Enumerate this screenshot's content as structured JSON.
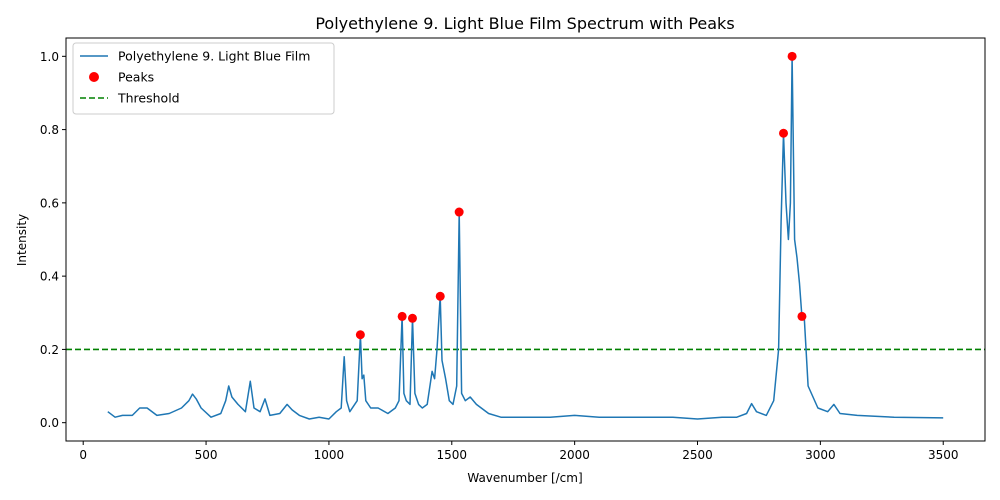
{
  "chart_data": {
    "type": "line",
    "title": "Polyethylene 9. Light Blue Film Spectrum with Peaks",
    "xlabel": "Wavenumber [/cm]",
    "ylabel": "Intensity",
    "xlim": [
      -70,
      3670
    ],
    "ylim": [
      -0.05,
      1.05
    ],
    "xticks": [
      0,
      500,
      1000,
      1500,
      2000,
      2500,
      3000,
      3500
    ],
    "yticks": [
      0.0,
      0.2,
      0.4,
      0.6,
      0.8,
      1.0
    ],
    "xtick_labels": [
      "0",
      "500",
      "1000",
      "1500",
      "2000",
      "2500",
      "3000",
      "3500"
    ],
    "ytick_labels": [
      "0.0",
      "0.2",
      "0.4",
      "0.6",
      "0.8",
      "1.0"
    ],
    "grid": false,
    "legend_position": "top-left",
    "legend": [
      "Polyethylene 9. Light Blue Film",
      "Peaks",
      "Threshold"
    ],
    "series": [
      {
        "name": "Polyethylene 9. Light Blue Film",
        "color": "#1f77b4",
        "style": "solid-line",
        "x": [
          100,
          130,
          160,
          200,
          230,
          260,
          300,
          350,
          400,
          430,
          445,
          460,
          480,
          520,
          560,
          580,
          592,
          605,
          630,
          660,
          680,
          695,
          720,
          740,
          760,
          800,
          830,
          850,
          880,
          920,
          960,
          1000,
          1030,
          1050,
          1062,
          1072,
          1085,
          1100,
          1115,
          1128,
          1135,
          1142,
          1150,
          1170,
          1200,
          1240,
          1270,
          1285,
          1298,
          1305,
          1315,
          1330,
          1340,
          1350,
          1365,
          1380,
          1400,
          1420,
          1430,
          1440,
          1453,
          1460,
          1475,
          1490,
          1505,
          1520,
          1530,
          1540,
          1555,
          1575,
          1600,
          1650,
          1700,
          1800,
          1900,
          2000,
          2100,
          2200,
          2300,
          2400,
          2500,
          2600,
          2660,
          2700,
          2720,
          2740,
          2780,
          2810,
          2830,
          2840,
          2850,
          2860,
          2870,
          2878,
          2885,
          2895,
          2905,
          2915,
          2925,
          2935,
          2950,
          2990,
          3030,
          3055,
          3080,
          3150,
          3300,
          3500
        ],
        "y": [
          0.03,
          0.015,
          0.02,
          0.02,
          0.04,
          0.04,
          0.02,
          0.025,
          0.04,
          0.06,
          0.078,
          0.065,
          0.04,
          0.015,
          0.025,
          0.06,
          0.1,
          0.07,
          0.05,
          0.03,
          0.113,
          0.04,
          0.03,
          0.065,
          0.02,
          0.025,
          0.05,
          0.035,
          0.02,
          0.01,
          0.015,
          0.01,
          0.03,
          0.04,
          0.18,
          0.06,
          0.03,
          0.045,
          0.06,
          0.24,
          0.12,
          0.13,
          0.06,
          0.04,
          0.04,
          0.025,
          0.04,
          0.06,
          0.29,
          0.08,
          0.06,
          0.05,
          0.285,
          0.08,
          0.05,
          0.04,
          0.05,
          0.14,
          0.12,
          0.2,
          0.345,
          0.17,
          0.12,
          0.06,
          0.05,
          0.1,
          0.575,
          0.08,
          0.06,
          0.07,
          0.05,
          0.025,
          0.015,
          0.015,
          0.015,
          0.02,
          0.015,
          0.015,
          0.015,
          0.015,
          0.01,
          0.015,
          0.015,
          0.025,
          0.052,
          0.03,
          0.02,
          0.06,
          0.2,
          0.55,
          0.79,
          0.6,
          0.5,
          0.6,
          1.0,
          0.5,
          0.45,
          0.38,
          0.29,
          0.28,
          0.1,
          0.04,
          0.03,
          0.05,
          0.025,
          0.02,
          0.015,
          0.013
        ]
      },
      {
        "name": "Peaks",
        "color": "#ff0000",
        "style": "markers",
        "x": [
          1128,
          1298,
          1340,
          1453,
          1530,
          2850,
          2885,
          2925
        ],
        "y": [
          0.24,
          0.29,
          0.285,
          0.345,
          0.575,
          0.79,
          1.0,
          0.29
        ]
      },
      {
        "name": "Threshold",
        "color": "#008000",
        "style": "dashed-hline",
        "y": 0.2
      }
    ]
  }
}
